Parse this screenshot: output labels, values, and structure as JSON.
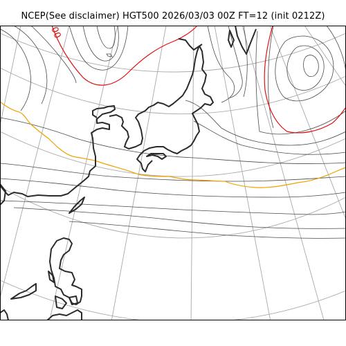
{
  "map": {
    "title": "NCEP(See disclaimer) HGT500 2026/03/03 00Z FT=12 (init 0212Z)",
    "contour_label": "00"
  },
  "colors": {
    "coastline": "#2b2b2b",
    "graticule": "#a8a8a8",
    "contour": "#4a4a4a",
    "highlight_contour": "#e01010",
    "reference_contour": "#f0a000",
    "frame": "#000000"
  }
}
